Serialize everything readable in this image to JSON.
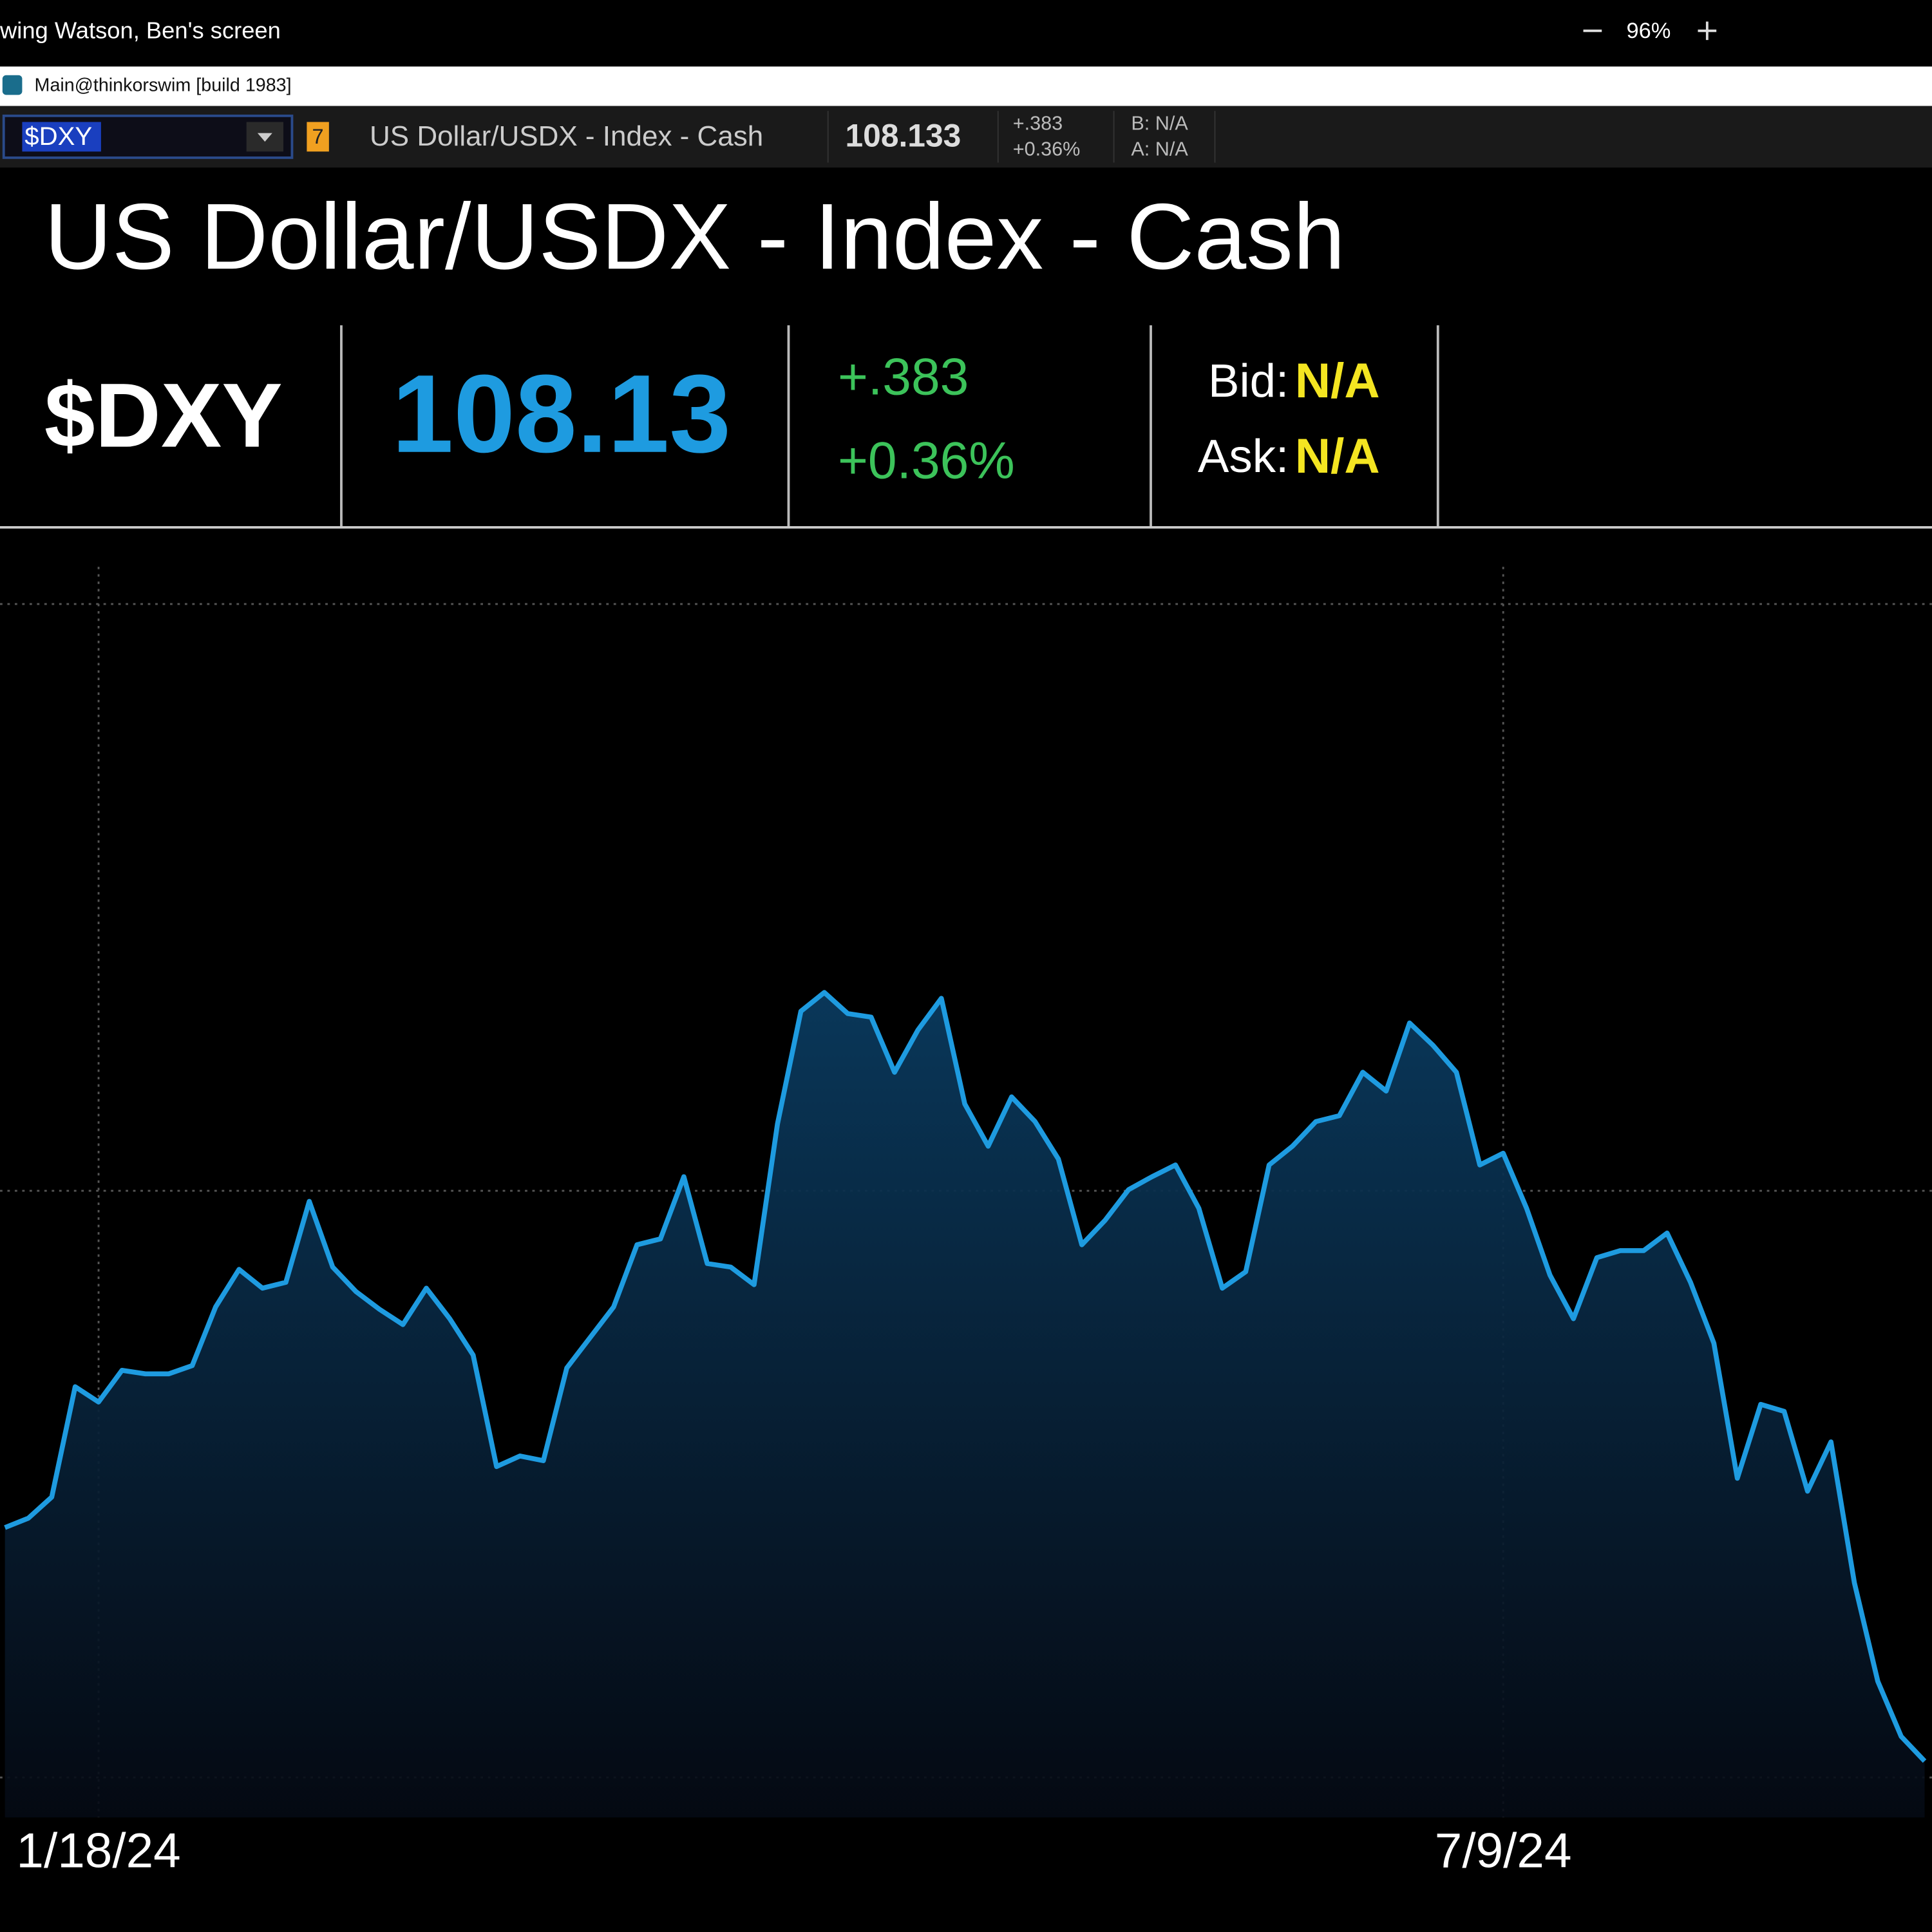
{
  "window": {
    "title_bar": "wing Watson, Ben's screen",
    "zoom": "96%",
    "app_title": "Main@thinkorswim [build 1983]"
  },
  "toolbar": {
    "symbol": "$DXY",
    "link_badge": "7",
    "description": "US Dollar/USDX - Index - Cash",
    "last": "108.133",
    "change": "+.383",
    "change_pct": "+0.36%",
    "bid": "B: N/A",
    "ask": "A: N/A"
  },
  "header": {
    "title": "US Dollar/USDX - Index - Cash",
    "symbol": "$DXY",
    "last": "108.13",
    "change": "+.383",
    "change_pct": "+0.36%",
    "bid_label": "Bid:",
    "bid": "N/A",
    "ask_label": "Ask:",
    "ask": "N/A"
  },
  "chart_data": {
    "type": "line",
    "fill": true,
    "color": "#1e9be0",
    "categories": [
      null,
      null,
      null,
      null,
      "1/18/24",
      null,
      null,
      null,
      null,
      null,
      null,
      null,
      null,
      null,
      null,
      null,
      null,
      null,
      null,
      null,
      null,
      null,
      null,
      null,
      null,
      null,
      null,
      null,
      null,
      null,
      null,
      null,
      null,
      null,
      null,
      null,
      null,
      null,
      null,
      null,
      null,
      null,
      null,
      null,
      null,
      null,
      null,
      null,
      null,
      null,
      null,
      null,
      null,
      null,
      null,
      null,
      null,
      null,
      null,
      null,
      null,
      null,
      null,
      null,
      "7/9/24",
      null,
      null,
      null,
      null,
      null,
      null,
      null,
      null,
      null,
      null,
      null,
      null,
      null,
      null,
      null,
      null,
      null,
      null
    ],
    "values": [
      102.13,
      102.21,
      102.39,
      103.33,
      103.2,
      103.47,
      103.44,
      103.44,
      103.51,
      104.01,
      104.33,
      104.17,
      104.22,
      104.91,
      104.35,
      104.14,
      103.99,
      103.86,
      104.17,
      103.91,
      103.6,
      102.65,
      102.74,
      102.7,
      103.49,
      103.75,
      104.01,
      104.54,
      104.59,
      105.12,
      104.38,
      104.35,
      104.2,
      105.57,
      106.53,
      106.69,
      106.51,
      106.48,
      106.01,
      106.37,
      106.64,
      105.74,
      105.38,
      105.8,
      105.59,
      105.27,
      104.54,
      104.75,
      105.01,
      105.12,
      105.22,
      104.85,
      104.17,
      104.31,
      105.22,
      105.38,
      105.59,
      105.64,
      106.01,
      105.85,
      106.43,
      106.24,
      106.01,
      105.22,
      105.32,
      104.85,
      104.28,
      103.91,
      104.43,
      104.49,
      104.49,
      104.64,
      104.22,
      103.7,
      102.55,
      103.18,
      103.12,
      102.44,
      102.86,
      101.66,
      100.82,
      100.35,
      100.14
    ],
    "ylim": [
      99.66,
      110.37
    ],
    "grid_lines": [
      100,
      105,
      110
    ]
  }
}
